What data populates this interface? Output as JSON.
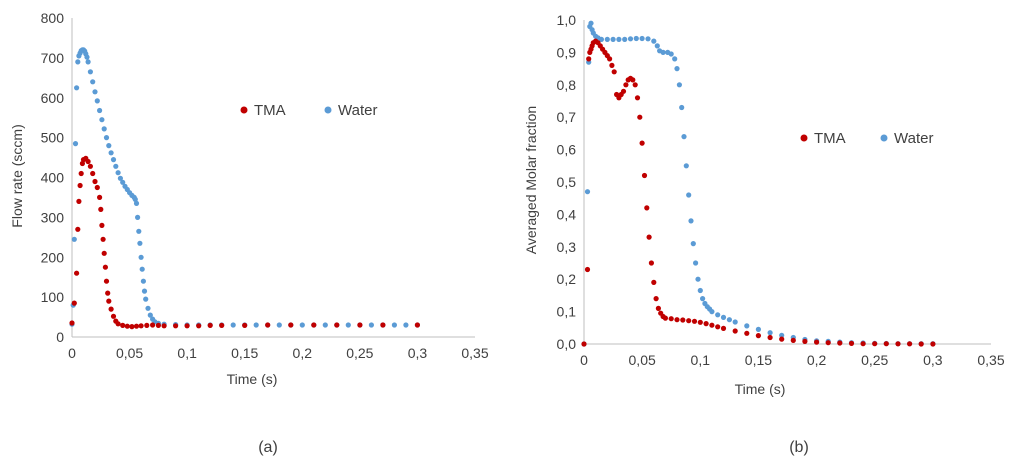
{
  "colors": {
    "tma": "#c00000",
    "water": "#5b9bd5",
    "axis": "#bfbfbf",
    "text": "#404040"
  },
  "chart_data": [
    {
      "type": "scatter",
      "caption": "(a)",
      "xlabel": "Time (s)",
      "ylabel": "Flow rate (sccm)",
      "xlim": [
        0,
        0.35
      ],
      "ylim": [
        0,
        800
      ],
      "xticks": [
        "0",
        "0,05",
        "0,1",
        "0,15",
        "0,2",
        "0,25",
        "0,3",
        "0,35"
      ],
      "yticks": [
        "0",
        "100",
        "200",
        "300",
        "400",
        "500",
        "600",
        "700",
        "800"
      ],
      "legend_placement": "upper-middle",
      "series": [
        {
          "name": "TMA",
          "points": [
            [
              0,
              35
            ],
            [
              0.002,
              85
            ],
            [
              0.004,
              160
            ],
            [
              0.005,
              270
            ],
            [
              0.006,
              340
            ],
            [
              0.007,
              380
            ],
            [
              0.008,
              410
            ],
            [
              0.009,
              435
            ],
            [
              0.01,
              445
            ],
            [
              0.012,
              448
            ],
            [
              0.014,
              440
            ],
            [
              0.016,
              428
            ],
            [
              0.018,
              410
            ],
            [
              0.02,
              390
            ],
            [
              0.022,
              375
            ],
            [
              0.024,
              350
            ],
            [
              0.025,
              320
            ],
            [
              0.026,
              280
            ],
            [
              0.027,
              245
            ],
            [
              0.028,
              210
            ],
            [
              0.029,
              175
            ],
            [
              0.03,
              140
            ],
            [
              0.031,
              110
            ],
            [
              0.032,
              90
            ],
            [
              0.034,
              70
            ],
            [
              0.036,
              52
            ],
            [
              0.038,
              40
            ],
            [
              0.04,
              33
            ],
            [
              0.044,
              29
            ],
            [
              0.048,
              27
            ],
            [
              0.052,
              26
            ],
            [
              0.056,
              27
            ],
            [
              0.06,
              28
            ],
            [
              0.065,
              29
            ],
            [
              0.07,
              30
            ],
            [
              0.075,
              29
            ],
            [
              0.08,
              28
            ],
            [
              0.09,
              28
            ],
            [
              0.1,
              28
            ],
            [
              0.11,
              28
            ],
            [
              0.12,
              29
            ],
            [
              0.13,
              29
            ],
            [
              0.15,
              29
            ],
            [
              0.17,
              30
            ],
            [
              0.19,
              30
            ],
            [
              0.21,
              30
            ],
            [
              0.23,
              30
            ],
            [
              0.25,
              30
            ],
            [
              0.27,
              30
            ],
            [
              0.3,
              30
            ]
          ]
        },
        {
          "name": "Water",
          "points": [
            [
              0,
              32
            ],
            [
              0.001,
              80
            ],
            [
              0.002,
              245
            ],
            [
              0.003,
              485
            ],
            [
              0.004,
              625
            ],
            [
              0.005,
              690
            ],
            [
              0.006,
              705
            ],
            [
              0.007,
              712
            ],
            [
              0.008,
              718
            ],
            [
              0.009,
              720
            ],
            [
              0.01,
              720
            ],
            [
              0.011,
              717
            ],
            [
              0.012,
              710
            ],
            [
              0.013,
              702
            ],
            [
              0.014,
              690
            ],
            [
              0.016,
              665
            ],
            [
              0.018,
              640
            ],
            [
              0.02,
              615
            ],
            [
              0.022,
              592
            ],
            [
              0.024,
              568
            ],
            [
              0.026,
              545
            ],
            [
              0.028,
              522
            ],
            [
              0.03,
              500
            ],
            [
              0.032,
              480
            ],
            [
              0.034,
              462
            ],
            [
              0.036,
              445
            ],
            [
              0.038,
              428
            ],
            [
              0.04,
              412
            ],
            [
              0.042,
              398
            ],
            [
              0.044,
              388
            ],
            [
              0.046,
              378
            ],
            [
              0.048,
              370
            ],
            [
              0.05,
              362
            ],
            [
              0.052,
              355
            ],
            [
              0.054,
              350
            ],
            [
              0.055,
              345
            ],
            [
              0.056,
              335
            ],
            [
              0.057,
              300
            ],
            [
              0.058,
              265
            ],
            [
              0.059,
              235
            ],
            [
              0.06,
              200
            ],
            [
              0.061,
              170
            ],
            [
              0.062,
              140
            ],
            [
              0.063,
              115
            ],
            [
              0.064,
              95
            ],
            [
              0.066,
              72
            ],
            [
              0.068,
              55
            ],
            [
              0.07,
              45
            ],
            [
              0.072,
              38
            ],
            [
              0.075,
              34
            ],
            [
              0.08,
              32
            ],
            [
              0.09,
              31
            ],
            [
              0.1,
              30
            ],
            [
              0.11,
              30
            ],
            [
              0.12,
              30
            ],
            [
              0.13,
              30
            ],
            [
              0.14,
              30
            ],
            [
              0.15,
              30
            ],
            [
              0.16,
              30
            ],
            [
              0.17,
              30
            ],
            [
              0.18,
              30
            ],
            [
              0.19,
              30
            ],
            [
              0.2,
              30
            ],
            [
              0.21,
              30
            ],
            [
              0.22,
              30
            ],
            [
              0.23,
              30
            ],
            [
              0.24,
              30
            ],
            [
              0.25,
              30
            ],
            [
              0.26,
              30
            ],
            [
              0.27,
              30
            ],
            [
              0.28,
              30
            ],
            [
              0.29,
              30
            ],
            [
              0.3,
              30
            ]
          ]
        }
      ]
    },
    {
      "type": "scatter",
      "caption": "(b)",
      "xlabel": "Time (s)",
      "ylabel": "Averaged Molar fraction",
      "xlim": [
        0,
        0.35
      ],
      "ylim": [
        0,
        1.0
      ],
      "xticks": [
        "0",
        "0,05",
        "0,1",
        "0,15",
        "0,2",
        "0,25",
        "0,3",
        "0,35"
      ],
      "yticks": [
        "0,0",
        "0,1",
        "0,2",
        "0,3",
        "0,4",
        "0,5",
        "0,6",
        "0,7",
        "0,8",
        "0,9",
        "1,0"
      ],
      "legend_placement": "middle-right",
      "series": [
        {
          "name": "TMA",
          "points": [
            [
              0,
              0
            ],
            [
              0.003,
              0.23
            ],
            [
              0.004,
              0.88
            ],
            [
              0.005,
              0.9
            ],
            [
              0.006,
              0.91
            ],
            [
              0.007,
              0.92
            ],
            [
              0.008,
              0.93
            ],
            [
              0.01,
              0.935
            ],
            [
              0.012,
              0.93
            ],
            [
              0.014,
              0.92
            ],
            [
              0.016,
              0.91
            ],
            [
              0.018,
              0.9
            ],
            [
              0.02,
              0.89
            ],
            [
              0.022,
              0.88
            ],
            [
              0.024,
              0.86
            ],
            [
              0.026,
              0.84
            ],
            [
              0.028,
              0.77
            ],
            [
              0.03,
              0.76
            ],
            [
              0.032,
              0.77
            ],
            [
              0.034,
              0.78
            ],
            [
              0.036,
              0.8
            ],
            [
              0.038,
              0.815
            ],
            [
              0.04,
              0.82
            ],
            [
              0.042,
              0.815
            ],
            [
              0.044,
              0.8
            ],
            [
              0.046,
              0.76
            ],
            [
              0.048,
              0.7
            ],
            [
              0.05,
              0.62
            ],
            [
              0.052,
              0.52
            ],
            [
              0.054,
              0.42
            ],
            [
              0.056,
              0.33
            ],
            [
              0.058,
              0.25
            ],
            [
              0.06,
              0.19
            ],
            [
              0.062,
              0.14
            ],
            [
              0.064,
              0.11
            ],
            [
              0.066,
              0.095
            ],
            [
              0.068,
              0.085
            ],
            [
              0.07,
              0.08
            ],
            [
              0.075,
              0.078
            ],
            [
              0.08,
              0.075
            ],
            [
              0.085,
              0.074
            ],
            [
              0.09,
              0.072
            ],
            [
              0.095,
              0.07
            ],
            [
              0.1,
              0.067
            ],
            [
              0.105,
              0.063
            ],
            [
              0.11,
              0.058
            ],
            [
              0.115,
              0.053
            ],
            [
              0.12,
              0.048
            ],
            [
              0.13,
              0.04
            ],
            [
              0.14,
              0.033
            ],
            [
              0.15,
              0.026
            ],
            [
              0.16,
              0.02
            ],
            [
              0.17,
              0.015
            ],
            [
              0.18,
              0.011
            ],
            [
              0.19,
              0.008
            ],
            [
              0.2,
              0.006
            ],
            [
              0.21,
              0.004
            ],
            [
              0.22,
              0.003
            ],
            [
              0.23,
              0.002
            ],
            [
              0.24,
              0.001
            ],
            [
              0.25,
              0.001
            ],
            [
              0.26,
              0.001
            ],
            [
              0.27,
              0.0005
            ],
            [
              0.28,
              0.0005
            ],
            [
              0.29,
              0
            ],
            [
              0.3,
              0
            ]
          ]
        },
        {
          "name": "Water",
          "points": [
            [
              0,
              0
            ],
            [
              0.003,
              0.47
            ],
            [
              0.004,
              0.87
            ],
            [
              0.005,
              0.98
            ],
            [
              0.006,
              0.99
            ],
            [
              0.007,
              0.97
            ],
            [
              0.008,
              0.96
            ],
            [
              0.01,
              0.95
            ],
            [
              0.012,
              0.945
            ],
            [
              0.015,
              0.94
            ],
            [
              0.02,
              0.94
            ],
            [
              0.025,
              0.94
            ],
            [
              0.03,
              0.94
            ],
            [
              0.035,
              0.94
            ],
            [
              0.04,
              0.942
            ],
            [
              0.045,
              0.943
            ],
            [
              0.05,
              0.943
            ],
            [
              0.055,
              0.942
            ],
            [
              0.06,
              0.935
            ],
            [
              0.063,
              0.92
            ],
            [
              0.065,
              0.905
            ],
            [
              0.068,
              0.9
            ],
            [
              0.072,
              0.9
            ],
            [
              0.075,
              0.895
            ],
            [
              0.078,
              0.88
            ],
            [
              0.08,
              0.85
            ],
            [
              0.082,
              0.8
            ],
            [
              0.084,
              0.73
            ],
            [
              0.086,
              0.64
            ],
            [
              0.088,
              0.55
            ],
            [
              0.09,
              0.46
            ],
            [
              0.092,
              0.38
            ],
            [
              0.094,
              0.31
            ],
            [
              0.096,
              0.25
            ],
            [
              0.098,
              0.2
            ],
            [
              0.1,
              0.165
            ],
            [
              0.102,
              0.14
            ],
            [
              0.104,
              0.125
            ],
            [
              0.106,
              0.115
            ],
            [
              0.108,
              0.108
            ],
            [
              0.11,
              0.1
            ],
            [
              0.115,
              0.09
            ],
            [
              0.12,
              0.082
            ],
            [
              0.125,
              0.075
            ],
            [
              0.13,
              0.068
            ],
            [
              0.14,
              0.056
            ],
            [
              0.15,
              0.045
            ],
            [
              0.16,
              0.035
            ],
            [
              0.17,
              0.027
            ],
            [
              0.18,
              0.02
            ],
            [
              0.19,
              0.014
            ],
            [
              0.2,
              0.01
            ],
            [
              0.21,
              0.008
            ],
            [
              0.22,
              0.006
            ],
            [
              0.23,
              0.004
            ],
            [
              0.24,
              0.003
            ],
            [
              0.25,
              0.002
            ],
            [
              0.26,
              0.0015
            ],
            [
              0.27,
              0.001
            ],
            [
              0.28,
              0.001
            ],
            [
              0.29,
              0.001
            ],
            [
              0.3,
              0.001
            ]
          ]
        }
      ]
    }
  ]
}
